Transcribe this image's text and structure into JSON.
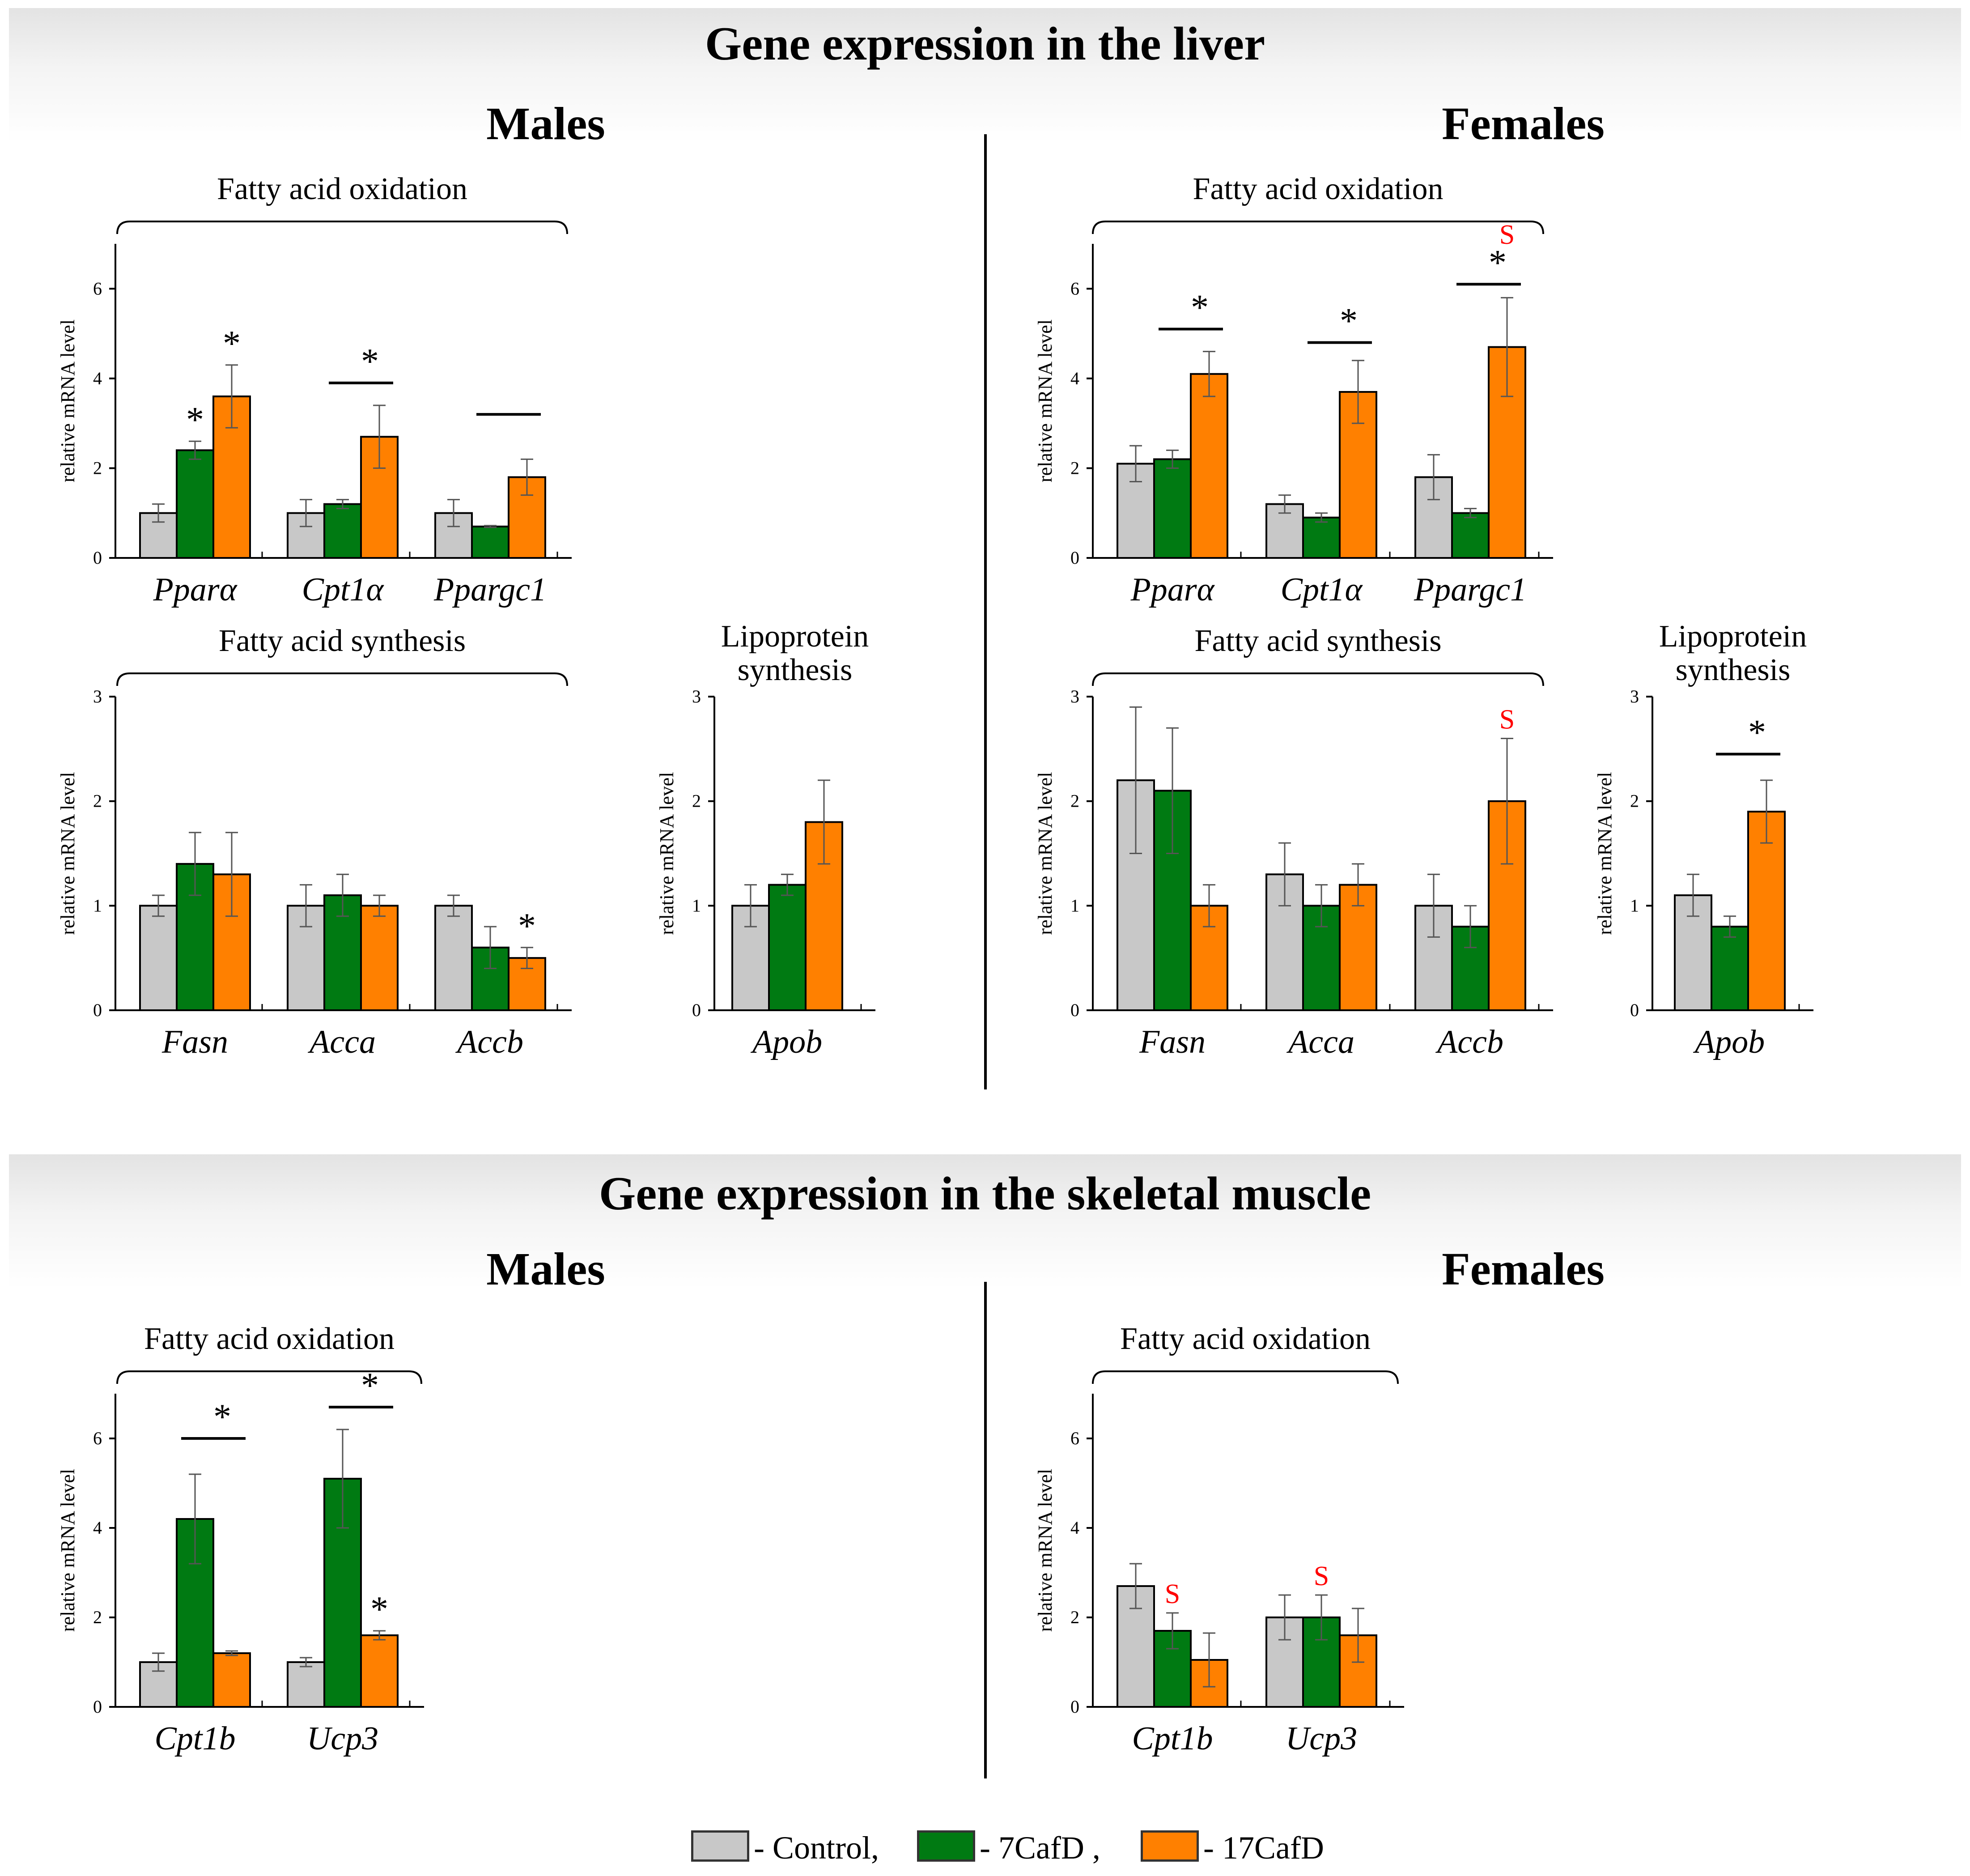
{
  "colors": {
    "control": "#c8c8c8",
    "cafd7": "#007a12",
    "cafd17": "#ff8000",
    "sig_red": "#ff0000"
  },
  "sections": [
    {
      "title": "Gene expression in the liver",
      "males": "Males",
      "females": "Females"
    },
    {
      "title": "Gene expression in the skeletal muscle",
      "males": "Males",
      "females": "Females"
    }
  ],
  "legend": {
    "items": [
      {
        "label": "- Control,",
        "color": "#c8c8c8"
      },
      {
        "label": "- 7CafD ,",
        "color": "#007a12"
      },
      {
        "label": "- 17CafD",
        "color": "#ff8000"
      }
    ]
  },
  "chart_data": [
    {
      "type": "bar",
      "group_label": "Fatty acid oxidation",
      "ylabel": "relative mRNA level",
      "ylim": [
        0,
        7
      ],
      "yticks": [
        0,
        2,
        4,
        6
      ],
      "categories": [
        "Pparα",
        "Cpt1α",
        "Ppargc1"
      ],
      "series": [
        {
          "name": "Control",
          "values": [
            1.0,
            1.0,
            1.0
          ],
          "errors": [
            0.2,
            0.3,
            0.3
          ]
        },
        {
          "name": "7CafD",
          "values": [
            2.4,
            1.2,
            0.7
          ],
          "errors": [
            0.2,
            0.1,
            0.02
          ]
        },
        {
          "name": "17CafD",
          "values": [
            3.6,
            2.7,
            1.8
          ],
          "errors": [
            0.7,
            0.7,
            0.4
          ]
        }
      ],
      "annotations": [
        {
          "category": 0,
          "series": 1,
          "text": "*"
        },
        {
          "category": 0,
          "series": 2,
          "text": "*"
        },
        {
          "category": 1,
          "span": [
            1,
            2
          ],
          "line_at": 3.9,
          "text": "*"
        },
        {
          "category": 2,
          "span": [
            1,
            2
          ],
          "line_at": 3.2,
          "text": ""
        }
      ]
    },
    {
      "type": "bar",
      "group_label": "Fatty acid synthesis",
      "ylabel": "relative mRNA level",
      "ylim": [
        0,
        3
      ],
      "yticks": [
        0,
        1,
        2,
        3
      ],
      "categories": [
        "Fasn",
        "Acca",
        "Accb"
      ],
      "series": [
        {
          "name": "Control",
          "values": [
            1.0,
            1.0,
            1.0
          ],
          "errors": [
            0.1,
            0.2,
            0.1
          ]
        },
        {
          "name": "7CafD",
          "values": [
            1.4,
            1.1,
            0.6
          ],
          "errors": [
            0.3,
            0.2,
            0.2
          ]
        },
        {
          "name": "17CafD",
          "values": [
            1.3,
            1.0,
            0.5
          ],
          "errors": [
            0.4,
            0.1,
            0.1
          ]
        }
      ],
      "annotations": [
        {
          "category": 2,
          "series": 2,
          "text": "*"
        }
      ]
    },
    {
      "type": "bar",
      "group_label": "Lipoprotein synthesis",
      "ylabel": "relative mRNA level",
      "ylim": [
        0,
        3
      ],
      "yticks": [
        0,
        1,
        2,
        3
      ],
      "categories": [
        "Apob"
      ],
      "series": [
        {
          "name": "Control",
          "values": [
            1.0
          ],
          "errors": [
            0.2
          ]
        },
        {
          "name": "7CafD",
          "values": [
            1.2
          ],
          "errors": [
            0.1
          ]
        },
        {
          "name": "17CafD",
          "values": [
            1.8
          ],
          "errors": [
            0.4
          ]
        }
      ],
      "annotations": []
    },
    {
      "type": "bar",
      "group_label": "Fatty acid oxidation",
      "ylabel": "relative mRNA level",
      "ylim": [
        0,
        7
      ],
      "yticks": [
        0,
        2,
        4,
        6
      ],
      "categories": [
        "Pparα",
        "Cpt1α",
        "Ppargc1"
      ],
      "series": [
        {
          "name": "Control",
          "values": [
            2.1,
            1.2,
            1.8
          ],
          "errors": [
            0.4,
            0.2,
            0.5
          ]
        },
        {
          "name": "7CafD",
          "values": [
            2.2,
            0.9,
            1.0
          ],
          "errors": [
            0.2,
            0.1,
            0.1
          ]
        },
        {
          "name": "17CafD",
          "values": [
            4.1,
            3.7,
            4.7
          ],
          "errors": [
            0.5,
            0.7,
            1.1
          ]
        }
      ],
      "annotations": [
        {
          "category": 0,
          "span": [
            1,
            2
          ],
          "line_at": 5.1,
          "text": "*"
        },
        {
          "category": 1,
          "span": [
            1,
            2
          ],
          "line_at": 4.8,
          "text": "*"
        },
        {
          "category": 2,
          "span": [
            1,
            2
          ],
          "line_at": 6.1,
          "text": "*"
        },
        {
          "category": 2,
          "series": 2,
          "text": "S",
          "color": "red",
          "y_at": 7.0
        }
      ]
    },
    {
      "type": "bar",
      "group_label": "Fatty acid synthesis",
      "ylabel": "relative mRNA level",
      "ylim": [
        0,
        3
      ],
      "yticks": [
        0,
        1,
        2,
        3
      ],
      "categories": [
        "Fasn",
        "Acca",
        "Accb"
      ],
      "series": [
        {
          "name": "Control",
          "values": [
            2.2,
            1.3,
            1.0
          ],
          "errors": [
            0.7,
            0.3,
            0.3
          ]
        },
        {
          "name": "7CafD",
          "values": [
            2.1,
            1.0,
            0.8
          ],
          "errors": [
            0.6,
            0.2,
            0.2
          ]
        },
        {
          "name": "17CafD",
          "values": [
            1.0,
            1.2,
            2.0
          ],
          "errors": [
            0.2,
            0.2,
            0.6
          ]
        }
      ],
      "annotations": [
        {
          "category": 2,
          "series": 2,
          "text": "S",
          "color": "red"
        }
      ]
    },
    {
      "type": "bar",
      "group_label": "Lipoprotein synthesis",
      "ylabel": "relative mRNA level",
      "ylim": [
        0,
        3
      ],
      "yticks": [
        0,
        1,
        2,
        3
      ],
      "categories": [
        "Apob"
      ],
      "series": [
        {
          "name": "Control",
          "values": [
            1.1
          ],
          "errors": [
            0.2
          ]
        },
        {
          "name": "7CafD",
          "values": [
            0.8
          ],
          "errors": [
            0.1
          ]
        },
        {
          "name": "17CafD",
          "values": [
            1.9
          ],
          "errors": [
            0.3
          ]
        }
      ],
      "annotations": [
        {
          "category": 0,
          "span": [
            1,
            2
          ],
          "line_at": 2.45,
          "text": "*"
        }
      ]
    },
    {
      "type": "bar",
      "group_label": "Fatty acid oxidation",
      "ylabel": "relative mRNA level",
      "ylim": [
        0,
        7
      ],
      "yticks": [
        0,
        2,
        4,
        6
      ],
      "categories": [
        "Cpt1b",
        "Ucp3"
      ],
      "series": [
        {
          "name": "Control",
          "values": [
            1.0,
            1.0
          ],
          "errors": [
            0.2,
            0.1
          ]
        },
        {
          "name": "7CafD",
          "values": [
            4.2,
            5.1
          ],
          "errors": [
            1.0,
            1.1
          ]
        },
        {
          "name": "17CafD",
          "values": [
            1.2,
            1.6
          ],
          "errors": [
            0.05,
            0.1
          ]
        }
      ],
      "annotations": [
        {
          "category": 0,
          "span": [
            1,
            2
          ],
          "line_at": 6.0,
          "text": "*"
        },
        {
          "category": 1,
          "span": [
            1,
            2
          ],
          "line_at": 6.7,
          "text": "*"
        },
        {
          "category": 1,
          "series": 2,
          "text": "*"
        }
      ]
    },
    {
      "type": "bar",
      "group_label": "Fatty acid oxidation",
      "ylabel": "relative mRNA level",
      "ylim": [
        0,
        7
      ],
      "yticks": [
        0,
        2,
        4,
        6
      ],
      "categories": [
        "Cpt1b",
        "Ucp3"
      ],
      "series": [
        {
          "name": "Control",
          "values": [
            2.7,
            2.0
          ],
          "errors": [
            0.5,
            0.5
          ]
        },
        {
          "name": "7CafD",
          "values": [
            1.7,
            2.0
          ],
          "errors": [
            0.4,
            0.5
          ]
        },
        {
          "name": "17CafD",
          "values": [
            1.05,
            1.6
          ],
          "errors": [
            0.6,
            0.6
          ]
        }
      ],
      "annotations": [
        {
          "category": 0,
          "series": 1,
          "text": "S",
          "color": "red"
        },
        {
          "category": 1,
          "series": 1,
          "text": "S",
          "color": "red"
        }
      ]
    }
  ]
}
